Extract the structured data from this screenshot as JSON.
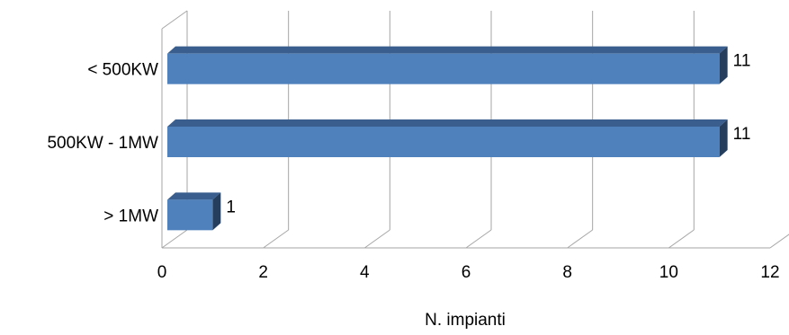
{
  "chart_data": {
    "type": "bar",
    "orientation": "horizontal",
    "style": "3d",
    "categories": [
      "< 500KW",
      "500KW - 1MW",
      "> 1MW"
    ],
    "values": [
      11,
      11,
      1
    ],
    "data_labels": [
      "11",
      "11",
      "1"
    ],
    "xlabel": "N. impianti",
    "xlim": [
      0,
      12
    ],
    "xticks": [
      "0",
      "2",
      "4",
      "6",
      "8",
      "10",
      "12"
    ],
    "grid": true,
    "legend": "none",
    "colors": {
      "front": "#4F81BD",
      "top": "#3A5F8F",
      "side": "#253E5D",
      "grid": "#A6A6A6"
    }
  }
}
